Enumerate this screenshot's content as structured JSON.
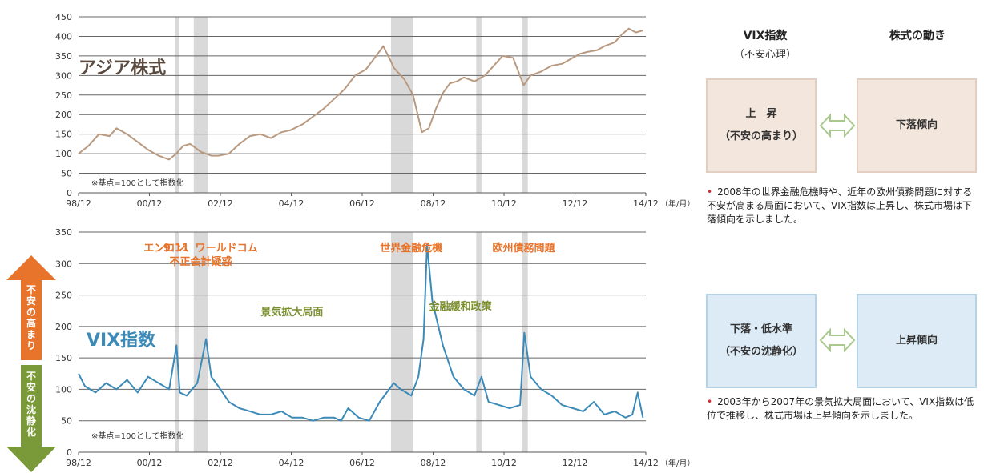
{
  "colors": {
    "asia_line": "#b99a80",
    "vix_line": "#3b8ab8",
    "event_band": "#d9d9d9",
    "orange": "#e8732a",
    "green": "#7a9a3a",
    "olive_text": "#7a8f2e",
    "beige_box": "#f3e6dd",
    "blue_box": "#dcebf5",
    "bullet": "#d62d2d"
  },
  "chart_data": [
    {
      "type": "line",
      "title": "アジア株式",
      "note": "※基点=100として指数化",
      "x_ticks": [
        "98/12",
        "00/12",
        "02/12",
        "04/12",
        "06/12",
        "08/12",
        "10/12",
        "12/12",
        "14/12"
      ],
      "x_unit": "（年/月）",
      "ylim": [
        0,
        450
      ],
      "y_ticks": [
        0,
        50,
        100,
        150,
        200,
        250,
        300,
        350,
        400,
        450
      ],
      "grid": true,
      "x_range": [
        1998.917,
        2015.083
      ],
      "series": [
        {
          "name": "アジア株式",
          "x": [
            1998.917,
            1999.2,
            1999.5,
            1999.8,
            2000.0,
            2000.3,
            2000.6,
            2000.9,
            2001.2,
            2001.5,
            2001.7,
            2001.9,
            2002.1,
            2002.4,
            2002.7,
            2002.9,
            2003.2,
            2003.5,
            2003.8,
            2004.1,
            2004.4,
            2004.7,
            2004.95,
            2005.3,
            2005.6,
            2005.9,
            2006.2,
            2006.5,
            2006.8,
            2007.1,
            2007.4,
            2007.6,
            2007.8,
            2007.9,
            2008.2,
            2008.45,
            2008.7,
            2008.9,
            2009.1,
            2009.3,
            2009.5,
            2009.7,
            2009.9,
            2010.2,
            2010.5,
            2010.8,
            2011.0,
            2011.3,
            2011.45,
            2011.6,
            2011.8,
            2012.1,
            2012.4,
            2012.7,
            2012.9,
            2013.2,
            2013.4,
            2013.7,
            2013.9,
            2014.2,
            2014.4,
            2014.6,
            2014.8,
            2015.0
          ],
          "values": [
            100,
            120,
            150,
            145,
            165,
            150,
            130,
            110,
            95,
            85,
            100,
            120,
            125,
            105,
            95,
            95,
            100,
            125,
            145,
            150,
            140,
            155,
            160,
            175,
            195,
            215,
            240,
            265,
            300,
            315,
            350,
            375,
            340,
            320,
            290,
            250,
            155,
            165,
            215,
            255,
            280,
            285,
            295,
            285,
            300,
            330,
            350,
            345,
            310,
            275,
            300,
            310,
            325,
            330,
            340,
            355,
            360,
            365,
            375,
            385,
            405,
            420,
            410,
            415
          ]
        }
      ]
    },
    {
      "type": "line",
      "title": "VIX指数",
      "note": "※基点=100として指数化",
      "x_ticks": [
        "98/12",
        "00/12",
        "02/12",
        "04/12",
        "06/12",
        "08/12",
        "10/12",
        "12/12",
        "14/12"
      ],
      "x_unit": "（年/月）",
      "ylim": [
        0,
        350
      ],
      "y_ticks": [
        0,
        50,
        100,
        150,
        200,
        250,
        300,
        350
      ],
      "grid": true,
      "x_range": [
        1998.917,
        2015.083
      ],
      "series": [
        {
          "name": "VIX指数",
          "x": [
            1998.917,
            1999.1,
            1999.4,
            1999.7,
            2000.0,
            2000.3,
            2000.6,
            2000.9,
            2001.2,
            2001.5,
            2001.71,
            2001.8,
            2002.0,
            2002.3,
            2002.55,
            2002.7,
            2002.9,
            2003.2,
            2003.5,
            2003.8,
            2004.1,
            2004.4,
            2004.7,
            2005.0,
            2005.3,
            2005.6,
            2005.9,
            2006.2,
            2006.4,
            2006.6,
            2006.9,
            2007.2,
            2007.5,
            2007.7,
            2007.9,
            2008.1,
            2008.4,
            2008.6,
            2008.75,
            2008.85,
            2009.0,
            2009.3,
            2009.6,
            2009.9,
            2010.2,
            2010.4,
            2010.6,
            2010.9,
            2011.2,
            2011.5,
            2011.62,
            2011.8,
            2012.1,
            2012.4,
            2012.7,
            2013.0,
            2013.3,
            2013.6,
            2013.9,
            2014.2,
            2014.5,
            2014.7,
            2014.85,
            2015.0
          ],
          "values": [
            125,
            105,
            95,
            110,
            100,
            115,
            95,
            120,
            110,
            100,
            170,
            95,
            90,
            110,
            180,
            120,
            105,
            80,
            70,
            65,
            60,
            60,
            65,
            55,
            55,
            50,
            55,
            55,
            50,
            70,
            55,
            50,
            80,
            95,
            110,
            100,
            90,
            120,
            180,
            330,
            240,
            170,
            120,
            100,
            90,
            120,
            80,
            75,
            70,
            75,
            190,
            120,
            100,
            90,
            75,
            70,
            65,
            80,
            60,
            65,
            55,
            60,
            95,
            55
          ]
        }
      ],
      "annotations": {
        "events": [
          {
            "label": "9.11",
            "year": 2001.7
          },
          {
            "label": "エンロン、ワールドコム\n不正会計疑惑",
            "year": 2002.4
          },
          {
            "label": "世界金融危機",
            "year": 2008.4
          },
          {
            "label": "欧州債務問題",
            "year": 2011.6
          }
        ],
        "phases": [
          {
            "label": "景気拡大局面",
            "year": 2005.0
          },
          {
            "label": "金融緩和政策",
            "year": 2009.8
          }
        ]
      }
    }
  ],
  "event_bands": [
    [
      2001.68,
      2001.78
    ],
    [
      2002.2,
      2002.6
    ],
    [
      2007.82,
      2008.45
    ],
    [
      2010.25,
      2010.4
    ],
    [
      2011.55,
      2011.72
    ]
  ],
  "side_arrows": {
    "up_label": "不安の高まり",
    "down_label": "不安の沈静化"
  },
  "right_panel": {
    "header_vix": "VIX指数",
    "header_vix_sub": "（不安心理）",
    "header_stock": "株式の動き",
    "box1_line1": "上　昇",
    "box1_line2": "（不安の高まり）",
    "box1_result": "下落傾向",
    "note1": "2008年の世界金融危機時や、近年の欧州債務問題に対する不安が高まる局面において、VIX指数は上昇し、株式市場は下落傾向を示しました。",
    "box2_line1": "下落・低水準",
    "box2_line2": "（不安の沈静化）",
    "box2_result": "上昇傾向",
    "note2": "2003年から2007年の景気拡大局面において、VIX指数は低位で推移し、株式市場は上昇傾向を示しました。"
  }
}
